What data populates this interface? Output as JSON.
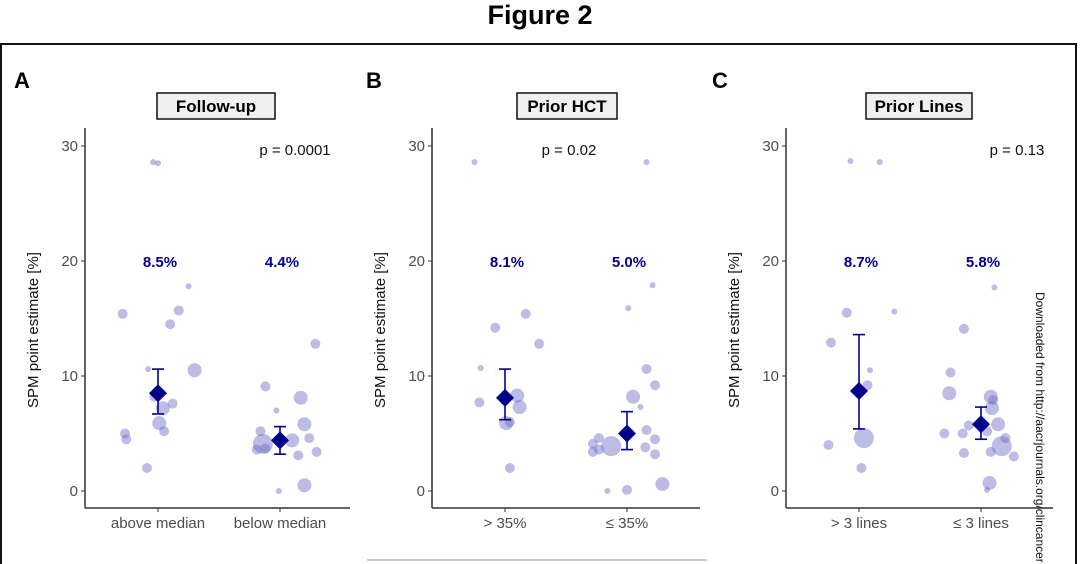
{
  "figure_title": "Figure 2",
  "watermark": "Downloaded from http://aacrjournals.org/clincancer",
  "colors": {
    "points": "#6a6ac6",
    "mean": "#00008b",
    "frame": "#111111"
  },
  "chart_data": [
    {
      "type": "scatter",
      "panel": "A",
      "strip_title": "Follow-up",
      "ylabel": "SPM point estimate [%]",
      "ylim": [
        -1.5,
        31
      ],
      "yticks": [
        0,
        10,
        20,
        30
      ],
      "categories": [
        "above median",
        "below median"
      ],
      "p_value": "p = 0.0001",
      "grid": false,
      "groups": [
        {
          "mean": 8.5,
          "mean_label": "8.5%",
          "ci": [
            6.7,
            10.6
          ],
          "points": [
            [
              -0.04,
              28.6,
              1
            ],
            [
              0.0,
              28.5,
              1
            ],
            [
              -0.29,
              15.4,
              2
            ],
            [
              0.25,
              17.8,
              1
            ],
            [
              0.17,
              15.7,
              2
            ],
            [
              0.1,
              14.5,
              2
            ],
            [
              -0.08,
              10.6,
              1
            ],
            [
              0.3,
              10.5,
              3
            ],
            [
              -0.03,
              8.2,
              2
            ],
            [
              0.04,
              7.2,
              3
            ],
            [
              0.12,
              7.6,
              2
            ],
            [
              0.01,
              5.9,
              3
            ],
            [
              0.05,
              5.2,
              2
            ],
            [
              -0.27,
              5.0,
              2
            ],
            [
              -0.26,
              4.5,
              2
            ],
            [
              -0.09,
              2.0,
              2
            ]
          ]
        },
        {
          "mean": 4.4,
          "mean_label": "4.4%",
          "ci": [
            3.2,
            5.6
          ],
          "points": [
            [
              -0.12,
              9.1,
              2
            ],
            [
              0.29,
              12.8,
              2
            ],
            [
              0.17,
              8.1,
              3
            ],
            [
              -0.03,
              7.0,
              1
            ],
            [
              0.2,
              5.8,
              3
            ],
            [
              -0.16,
              5.2,
              2
            ],
            [
              -0.14,
              4.1,
              4
            ],
            [
              0.1,
              4.4,
              3
            ],
            [
              0.24,
              4.6,
              2
            ],
            [
              -0.19,
              3.6,
              2
            ],
            [
              -0.12,
              3.7,
              2
            ],
            [
              0.3,
              3.4,
              2
            ],
            [
              0.15,
              3.1,
              2
            ],
            [
              0.2,
              0.5,
              3
            ],
            [
              -0.01,
              0.0,
              1
            ]
          ]
        }
      ]
    },
    {
      "type": "scatter",
      "panel": "B",
      "strip_title": "Prior HCT",
      "ylabel": "SPM point estimate [%]",
      "ylim": [
        -1.5,
        31
      ],
      "yticks": [
        0,
        10,
        20,
        30
      ],
      "categories": [
        "> 35%",
        "≤ 35%"
      ],
      "p_value": "p = 0.02",
      "grid": false,
      "groups": [
        {
          "mean": 8.1,
          "mean_label": "8.1%",
          "ci": [
            6.2,
            10.6
          ],
          "points": [
            [
              -0.25,
              28.6,
              1
            ],
            [
              -0.08,
              14.2,
              2
            ],
            [
              0.17,
              15.4,
              2
            ],
            [
              0.28,
              12.8,
              2
            ],
            [
              -0.2,
              10.7,
              1
            ],
            [
              -0.21,
              7.7,
              2
            ],
            [
              0.1,
              8.3,
              3
            ],
            [
              0.12,
              7.3,
              3
            ],
            [
              0.01,
              5.9,
              3
            ],
            [
              0.04,
              6.0,
              2
            ],
            [
              0.04,
              2.0,
              2
            ]
          ]
        },
        {
          "mean": 5.0,
          "mean_label": "5.0%",
          "ci": [
            3.6,
            6.9
          ],
          "points": [
            [
              0.16,
              28.6,
              1
            ],
            [
              0.21,
              17.9,
              1
            ],
            [
              0.01,
              15.9,
              1
            ],
            [
              0.16,
              10.6,
              2
            ],
            [
              0.23,
              9.2,
              2
            ],
            [
              0.05,
              8.2,
              3
            ],
            [
              0.11,
              7.3,
              1
            ],
            [
              0.16,
              5.3,
              2
            ],
            [
              0.23,
              4.5,
              2
            ],
            [
              0.15,
              3.8,
              2
            ],
            [
              0.23,
              3.2,
              2
            ],
            [
              -0.23,
              4.6,
              2
            ],
            [
              -0.28,
              4.1,
              2
            ],
            [
              -0.28,
              3.4,
              2
            ],
            [
              -0.23,
              3.6,
              2
            ],
            [
              -0.13,
              3.9,
              4
            ],
            [
              0.29,
              0.6,
              3
            ],
            [
              -0.16,
              0.0,
              1
            ],
            [
              0.0,
              0.1,
              2
            ]
          ]
        }
      ]
    },
    {
      "type": "scatter",
      "panel": "C",
      "strip_title": "Prior Lines",
      "ylabel": "SPM point estimate [%]",
      "ylim": [
        -1.5,
        31
      ],
      "yticks": [
        0,
        10,
        20,
        30
      ],
      "categories": [
        "> 3 lines",
        "≤ 3 lines"
      ],
      "p_value": "p = 0.13",
      "grid": false,
      "groups": [
        {
          "mean": 8.7,
          "mean_label": "8.7%",
          "ci": [
            5.4,
            13.6
          ],
          "points": [
            [
              -0.07,
              28.7,
              1
            ],
            [
              0.17,
              28.6,
              1
            ],
            [
              -0.1,
              15.5,
              2
            ],
            [
              0.29,
              15.6,
              1
            ],
            [
              -0.23,
              12.9,
              2
            ],
            [
              0.09,
              10.5,
              1
            ],
            [
              0.07,
              9.2,
              2
            ],
            [
              0.04,
              4.6,
              4
            ],
            [
              -0.25,
              4.0,
              2
            ],
            [
              0.02,
              2.0,
              2
            ]
          ]
        },
        {
          "mean": 5.8,
          "mean_label": "5.8%",
          "ci": [
            4.5,
            7.3
          ],
          "points": [
            [
              0.11,
              17.7,
              1
            ],
            [
              -0.14,
              14.1,
              2
            ],
            [
              -0.25,
              10.3,
              2
            ],
            [
              -0.26,
              8.5,
              3
            ],
            [
              0.08,
              8.2,
              3
            ],
            [
              0.1,
              7.9,
              2
            ],
            [
              0.09,
              7.2,
              3
            ],
            [
              0.14,
              5.8,
              3
            ],
            [
              -0.1,
              5.7,
              2
            ],
            [
              0.05,
              5.2,
              2
            ],
            [
              -0.3,
              5.0,
              2
            ],
            [
              -0.15,
              5.0,
              2
            ],
            [
              0.2,
              4.6,
              2
            ],
            [
              0.17,
              3.9,
              4
            ],
            [
              0.08,
              3.4,
              2
            ],
            [
              -0.14,
              3.3,
              2
            ],
            [
              0.27,
              3.0,
              2
            ],
            [
              0.07,
              0.7,
              3
            ],
            [
              0.05,
              0.1,
              1
            ]
          ]
        }
      ]
    }
  ]
}
